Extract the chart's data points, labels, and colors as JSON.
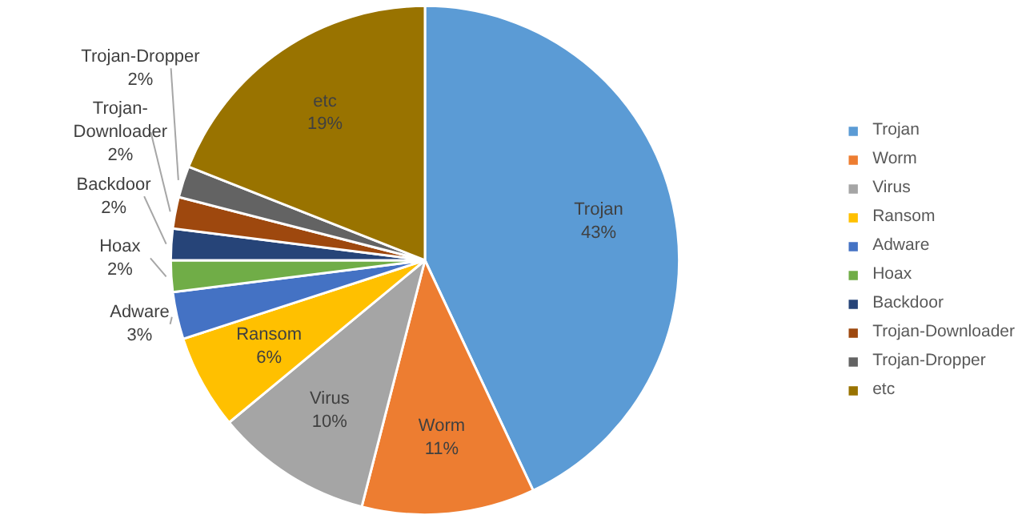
{
  "chart_data": {
    "type": "pie",
    "categories": [
      "Trojan",
      "Worm",
      "Virus",
      "Ransom",
      "Adware",
      "Hoax",
      "Backdoor",
      "Trojan-Downloader",
      "Trojan-Dropper",
      "etc"
    ],
    "values": [
      43,
      11,
      10,
      6,
      3,
      2,
      2,
      2,
      2,
      19
    ],
    "colors": [
      "#5b9bd5",
      "#ed7d31",
      "#a5a5a5",
      "#ffc000",
      "#4472c4",
      "#70ad47",
      "#264478",
      "#9e480e",
      "#636363",
      "#997300"
    ],
    "value_labels": [
      "43%",
      "11%",
      "10%",
      "6%",
      "3%",
      "2%",
      "2%",
      "2%",
      "2%",
      "19%"
    ],
    "legend": "right"
  }
}
